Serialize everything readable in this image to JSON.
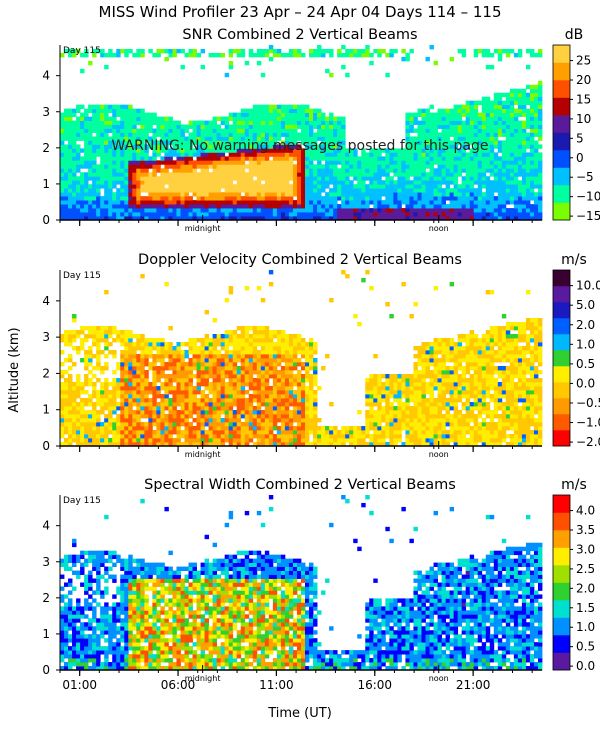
{
  "figure": {
    "title": "MISS Wind Profiler  23 Apr – 24 Apr 04 Days 114 – 115",
    "warning": "WARNING: No warning messages posted for this page",
    "xlabel": "Time (UT)",
    "ylabel": "Altitude (km)",
    "x_ticks": [
      "01:00",
      "06:00",
      "11:00",
      "16:00",
      "21:00"
    ],
    "x_tick_hours": [
      1,
      6,
      11,
      16,
      21
    ],
    "x_range_hours": [
      0,
      24.5
    ],
    "markers": [
      {
        "label": "midnight",
        "hour": 7.25
      },
      {
        "label": "noon",
        "hour": 19.25
      }
    ],
    "day_label": "Day 115",
    "y_ticks": [
      "0",
      "1",
      "2",
      "3",
      "4"
    ],
    "y_range_km": [
      0,
      4.85
    ]
  },
  "colors": {
    "snr": [
      "#7cfc00",
      "#00ffa0",
      "#00c0ff",
      "#0050ff",
      "#1a1ab0",
      "#5a1a9a",
      "#b50000",
      "#ff5000",
      "#ffa000",
      "#ffd040"
    ],
    "doppler": [
      "#ff0000",
      "#ff5a00",
      "#ff9a00",
      "#ffc800",
      "#ffee00",
      "#30d030",
      "#00b8ff",
      "#0060ff",
      "#1a1ac0",
      "#5a1aa0",
      "#3a0030"
    ],
    "width": [
      "#5a1aa0",
      "#0000ff",
      "#0090ff",
      "#00e0d0",
      "#30d030",
      "#a0e000",
      "#ffee00",
      "#ffa000",
      "#ff5000",
      "#ff0000"
    ]
  },
  "chart_data": [
    {
      "type": "heatmap",
      "title": "SNR Combined 2 Vertical Beams",
      "unit": "dB",
      "colorbar_ticks": [
        "25",
        "20",
        "15",
        "10",
        "5",
        "0",
        "−5",
        "−10",
        "−15"
      ],
      "colorbar_values": [
        25,
        20,
        15,
        10,
        5,
        0,
        -5,
        -10,
        -15
      ],
      "value_range": [
        -15,
        27
      ],
      "xlabel": "",
      "ylabel": "",
      "ylim": [
        0,
        4.85
      ]
    },
    {
      "type": "heatmap",
      "title": "Doppler Velocity Combined 2 Vertical Beams",
      "unit": "m/s",
      "colorbar_ticks": [
        "10.0",
        "5.0",
        "2.0",
        "1.0",
        "0.5",
        "0.0",
        "−0.5",
        "−1.0",
        "−2.0"
      ],
      "colorbar_values": [
        10.0,
        5.0,
        2.0,
        1.0,
        0.5,
        0.0,
        -0.5,
        -1.0,
        -2.0
      ],
      "xlabel": "",
      "ylabel": "Altitude (km)",
      "ylim": [
        0,
        4.85
      ]
    },
    {
      "type": "heatmap",
      "title": "Spectral Width Combined 2 Vertical Beams",
      "unit": "m/s",
      "colorbar_ticks": [
        "4.0",
        "3.5",
        "3.0",
        "2.5",
        "2.0",
        "1.5",
        "1.0",
        "0.5",
        "0.0"
      ],
      "colorbar_values": [
        4.0,
        3.5,
        3.0,
        2.5,
        2.0,
        1.5,
        1.0,
        0.5,
        0.0
      ],
      "value_range": [
        0,
        4.2
      ],
      "xlabel": "Time (UT)",
      "ylabel": "",
      "ylim": [
        0,
        4.85
      ]
    }
  ]
}
